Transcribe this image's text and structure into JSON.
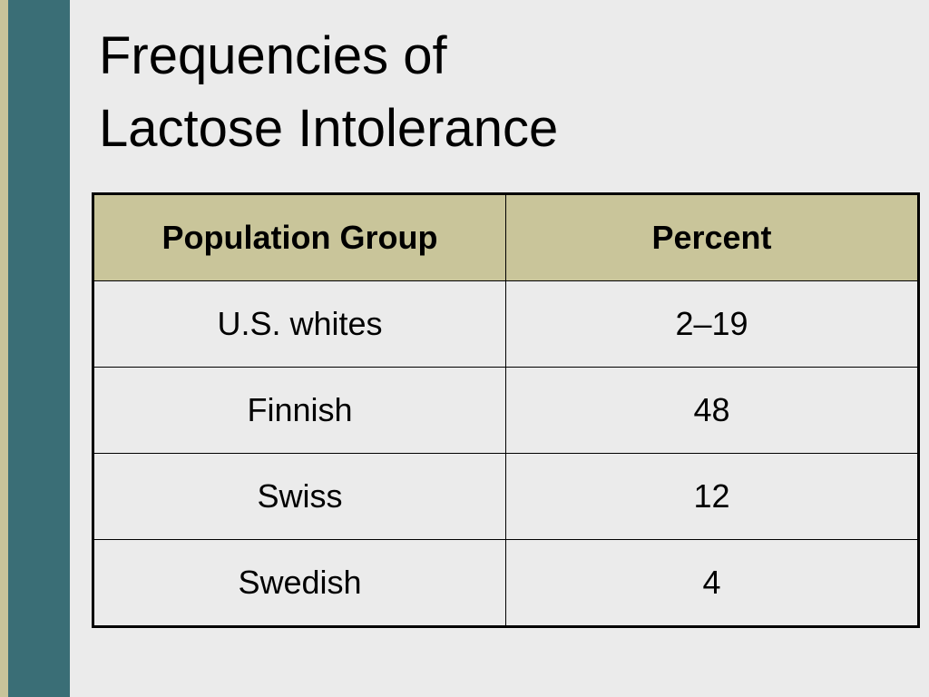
{
  "slide": {
    "title_lines": [
      "Frequencies of",
      "Lactose Intolerance"
    ],
    "colors": {
      "background": "#ebebeb",
      "stripe_tan": "#c8c39a",
      "stripe_teal": "#3a6e76",
      "header_fill": "#c9c59a",
      "border": "#000000"
    }
  },
  "table": {
    "headers": [
      "Population Group",
      "Percent"
    ],
    "rows": [
      [
        "U.S. whites",
        "2–19"
      ],
      [
        "Finnish",
        "48"
      ],
      [
        "Swiss",
        "12"
      ],
      [
        "Swedish",
        "4"
      ]
    ]
  }
}
